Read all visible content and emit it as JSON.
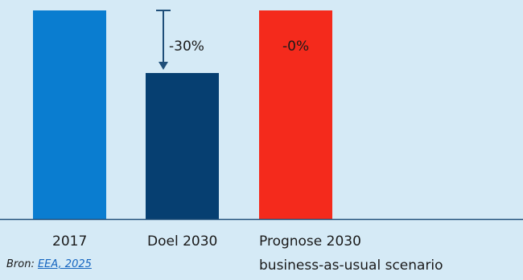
{
  "chart_data": {
    "type": "bar",
    "categories": [
      "2017",
      "Doel 2030",
      "Prognose 2030"
    ],
    "category_sublabels": [
      "",
      "",
      "business-as-usual scenario"
    ],
    "values": [
      100,
      70,
      100
    ],
    "bar_colors": [
      "#0a7dd0",
      "#063f71",
      "#f42a1c"
    ],
    "annotations": [
      "",
      "-30%",
      "-0%"
    ],
    "title": "",
    "xlabel": "",
    "ylabel": "",
    "ylim": [
      0,
      100
    ],
    "grid": false,
    "legend": "none"
  },
  "source": {
    "prefix": "Bron: ",
    "link_text": "EEA, 2025"
  },
  "colors": {
    "background": "#d5eaf6",
    "axis": "#1f4e79",
    "arrow": "#1f4e79"
  }
}
